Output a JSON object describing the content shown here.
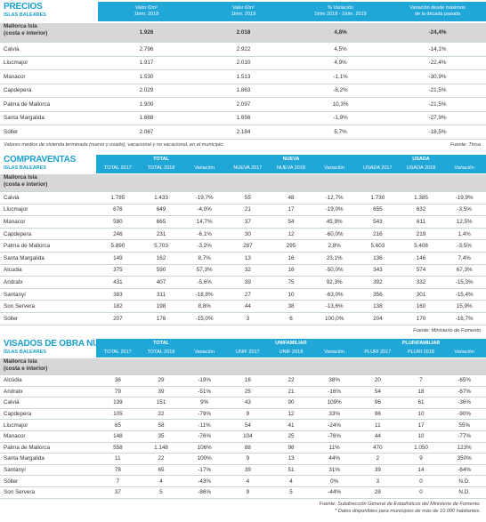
{
  "precios": {
    "title": "PRECIOS",
    "subtitle": "ISLAS BALEARES",
    "headers": [
      [
        "Valor €/m²",
        "1trim. 2018"
      ],
      [
        "Valor €/m²",
        "1trim. 2019"
      ],
      [
        "% Variación",
        "1trim 2018 - 1trim. 2019"
      ],
      [
        "Variación desde máximos",
        "de la década pasada"
      ]
    ],
    "region": {
      "name": "Mallorca Isla",
      "detail": "(costa e interior)",
      "values": [
        "1.926",
        "2.018",
        "4,8%",
        "-24,4%"
      ]
    },
    "rows": [
      {
        "name": "Calvià",
        "values": [
          "2.796",
          "2.922",
          "4,5%",
          "-14,1%"
        ]
      },
      {
        "name": "Llucmajor",
        "values": [
          "1.917",
          "2.010",
          "4,9%",
          "-22,4%"
        ]
      },
      {
        "name": "Manacor",
        "values": [
          "1.530",
          "1.513",
          "-1,1%",
          "-30,9%"
        ]
      },
      {
        "name": "Capdepera",
        "values": [
          "2.029",
          "1.863",
          "-8,2%",
          "-21,5%"
        ]
      },
      {
        "name": "Palma de Mallorca",
        "values": [
          "1.900",
          "2.097",
          "10,3%",
          "-21,5%"
        ]
      },
      {
        "name": "Santa Margalida",
        "values": [
          "1.688",
          "1.656",
          "-1,9%",
          "-27,9%"
        ]
      },
      {
        "name": "Sóller",
        "values": [
          "2.067",
          "2.184",
          "5,7%",
          "-18,5%"
        ]
      }
    ],
    "note": "Valores medios de vivienda terminada (nuevo y usado), vacacional y no vacacional, en el municipio.",
    "source": "Fuente: Tinsa"
  },
  "compraventas": {
    "title": "COMPRAVENTAS",
    "subtitle": "ISLAS BALEARES",
    "groups": [
      "TOTAL",
      "NUEVA",
      "USADA"
    ],
    "columns": [
      "TOTAL 2017",
      "TOTAL 2018",
      "Variación",
      "NUEVA 2017",
      "NUEVA 2018",
      "Variación",
      "USADA 2017",
      "USADA 2018",
      "Variación"
    ],
    "region": {
      "name": "Mallorca Isla",
      "detail": "(costa e interior)"
    },
    "rows": [
      {
        "name": "Calvià",
        "values": [
          "1.785",
          "1.433",
          "-19,7%",
          "55",
          "48",
          "-12,7%",
          "1.730",
          "1.385",
          "-19,9%"
        ]
      },
      {
        "name": "Llucmajor",
        "values": [
          "676",
          "649",
          "-4,0%",
          "21",
          "17",
          "-19,0%",
          "655",
          "632",
          "-3,5%"
        ]
      },
      {
        "name": "Manacor",
        "values": [
          "580",
          "665",
          "14,7%",
          "37",
          "54",
          "45,9%",
          "543",
          "611",
          "12,5%"
        ]
      },
      {
        "name": "Capdepera",
        "values": [
          "246",
          "231",
          "-6,1%",
          "30",
          "12",
          "-60,0%",
          "216",
          "219",
          "1,4%"
        ]
      },
      {
        "name": "Palma de Mallorca",
        "values": [
          "5.890",
          "5.703",
          "-3,2%",
          "287",
          "295",
          "2,8%",
          "5.603",
          "5.408",
          "-3,5%"
        ]
      },
      {
        "name": "Santa Margalida",
        "values": [
          "149",
          "162",
          "8,7%",
          "13",
          "16",
          "23,1%",
          "136",
          "146",
          "7,4%"
        ]
      },
      {
        "name": "Alcudia",
        "values": [
          "375",
          "590",
          "57,3%",
          "32",
          "16",
          "-50,0%",
          "343",
          "574",
          "67,3%"
        ]
      },
      {
        "name": "Andratx",
        "values": [
          "431",
          "407",
          "-5,6%",
          "39",
          "75",
          "92,3%",
          "392",
          "332",
          "-15,3%"
        ]
      },
      {
        "name": "Santanyí",
        "values": [
          "383",
          "311",
          "-18,8%",
          "27",
          "10",
          "-63,0%",
          "356",
          "301",
          "-15,4%"
        ]
      },
      {
        "name": "Son Servera",
        "values": [
          "182",
          "198",
          "8,8%",
          "44",
          "38",
          "-13,6%",
          "138",
          "160",
          "15,9%"
        ]
      },
      {
        "name": "Sóller",
        "values": [
          "207",
          "176",
          "-15,0%",
          "3",
          "6",
          "100,0%",
          "204",
          "170",
          "-16,7%"
        ]
      }
    ],
    "notes": [
      "Fuente: Ministerio de Fomento"
    ]
  },
  "visados": {
    "title": "VISADOS DE OBRA NUEVA",
    "subtitle": "ISLAS BALEARES",
    "groups": [
      "TOTAL",
      "UNIFAMILIAR",
      "PLURIFAMILIAR"
    ],
    "columns": [
      "TOTAL 2017",
      "TOTAL 2018",
      "Variación",
      "UNIF 2017",
      "UNIF 2018",
      "Variación",
      "PLURI 2017",
      "PLURI 2018",
      "Variación"
    ],
    "region": {
      "name": "Mallorca Isla",
      "detail": "(costa e interior)"
    },
    "rows": [
      {
        "name": "Alcúdia",
        "values": [
          "36",
          "29",
          "-19%",
          "16",
          "22",
          "38%",
          "20",
          "7",
          "-65%"
        ]
      },
      {
        "name": "Andratx",
        "values": [
          "79",
          "39",
          "-51%",
          "25",
          "21",
          "-16%",
          "54",
          "18",
          "-67%"
        ]
      },
      {
        "name": "Calvià",
        "values": [
          "139",
          "151",
          "9%",
          "43",
          "90",
          "109%",
          "96",
          "61",
          "-36%"
        ]
      },
      {
        "name": "Capdepera",
        "values": [
          "105",
          "22",
          "-79%",
          "9",
          "12",
          "33%",
          "96",
          "10",
          "-90%"
        ]
      },
      {
        "name": "Llucmajor",
        "values": [
          "65",
          "58",
          "-11%",
          "54",
          "41",
          "-24%",
          "11",
          "17",
          "55%"
        ]
      },
      {
        "name": "Manacor",
        "values": [
          "148",
          "35",
          "-76%",
          "104",
          "25",
          "-76%",
          "44",
          "10",
          "-77%"
        ]
      },
      {
        "name": "Palma de Mallorca",
        "values": [
          "558",
          "1.148",
          "106%",
          "88",
          "98",
          "11%",
          "470",
          "1.050",
          "123%"
        ]
      },
      {
        "name": "Santa Margalida",
        "values": [
          "11",
          "22",
          "100%",
          "9",
          "13",
          "44%",
          "2",
          "9",
          "350%"
        ]
      },
      {
        "name": "Santanyí",
        "values": [
          "78",
          "65",
          "-17%",
          "39",
          "51",
          "31%",
          "39",
          "14",
          "-64%"
        ]
      },
      {
        "name": "Sóller",
        "values": [
          "7",
          "4",
          "-43%",
          "4",
          "4",
          "0%",
          "3",
          "0",
          "N.D."
        ]
      },
      {
        "name": "Son Servera",
        "values": [
          "37",
          "5",
          "-86%",
          "9",
          "5",
          "-44%",
          "28",
          "0",
          "N.D."
        ]
      }
    ],
    "notes": [
      "Fuente: Subdirección General de Estadísticos del Ministerio de Fomento.",
      "* Datos disponibles para municipios de más de 10.000 habitantes."
    ]
  }
}
